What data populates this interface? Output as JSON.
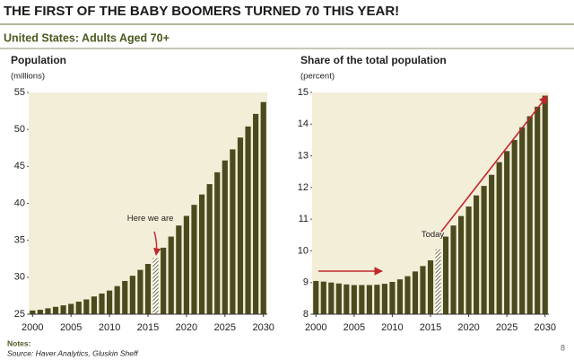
{
  "header": {
    "title": "THE FIRST OF THE BABY BOOMERS TURNED 70 THIS YEAR!",
    "subtitle": "United States: Adults Aged 70+"
  },
  "chart_data": [
    {
      "type": "bar",
      "title": "Population",
      "subtitle": "(millions)",
      "color": "#4a4a1e",
      "background": "#f3eed8",
      "x": [
        2000,
        2001,
        2002,
        2003,
        2004,
        2005,
        2006,
        2007,
        2008,
        2009,
        2010,
        2011,
        2012,
        2013,
        2014,
        2015,
        2016,
        2017,
        2018,
        2019,
        2020,
        2021,
        2022,
        2023,
        2024,
        2025,
        2026,
        2027,
        2028,
        2029,
        2030
      ],
      "values": [
        25.5,
        25.6,
        25.8,
        26.0,
        26.2,
        26.4,
        26.7,
        27.0,
        27.4,
        27.8,
        28.2,
        28.8,
        29.5,
        30.2,
        31.0,
        31.8,
        32.6,
        34.0,
        35.5,
        37.0,
        38.3,
        39.8,
        41.2,
        42.6,
        44.2,
        45.8,
        47.3,
        48.9,
        50.4,
        52.1,
        53.7
      ],
      "xlim": [
        1999.5,
        2030.5
      ],
      "xticks": [
        2000,
        2005,
        2010,
        2015,
        2020,
        2025,
        2030
      ],
      "ylim": [
        25,
        55
      ],
      "yticks": [
        25,
        30,
        35,
        40,
        45,
        50,
        55
      ],
      "annotations": [
        {
          "text": "Here we are",
          "x": 2016
        }
      ]
    },
    {
      "type": "bar",
      "title": "Share of the total population",
      "subtitle": "(percent)",
      "color": "#4a4a1e",
      "background": "#f3eed8",
      "x": [
        2000,
        2001,
        2002,
        2003,
        2004,
        2005,
        2006,
        2007,
        2008,
        2009,
        2010,
        2011,
        2012,
        2013,
        2014,
        2015,
        2016,
        2017,
        2018,
        2019,
        2020,
        2021,
        2022,
        2023,
        2024,
        2025,
        2026,
        2027,
        2028,
        2029,
        2030
      ],
      "values": [
        9.05,
        9.03,
        9.0,
        8.97,
        8.94,
        8.92,
        8.92,
        8.92,
        8.93,
        8.96,
        9.02,
        9.1,
        9.2,
        9.35,
        9.52,
        9.7,
        10.05,
        10.45,
        10.8,
        11.1,
        11.4,
        11.75,
        12.05,
        12.4,
        12.8,
        13.15,
        13.5,
        13.9,
        14.25,
        14.55,
        14.9
      ],
      "xlim": [
        1999.5,
        2030.5
      ],
      "xticks": [
        2000,
        2005,
        2010,
        2015,
        2020,
        2025,
        2030
      ],
      "ylim": [
        8,
        15
      ],
      "yticks": [
        8,
        9,
        10,
        11,
        12,
        13,
        14,
        15
      ],
      "annotations": [
        {
          "text": "Today",
          "x": 2016
        }
      ]
    }
  ],
  "footer": {
    "notes": "Notes:",
    "source": "Source: Haver Analytics, Gluskin Sheff",
    "page": "8"
  }
}
